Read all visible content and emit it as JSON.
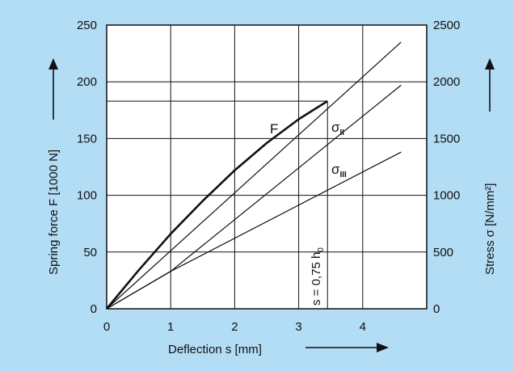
{
  "colors": {
    "background": "#b3dcf5",
    "plot_area": "#ffffff",
    "ink": "#111111"
  },
  "chart_data": {
    "type": "line",
    "xlabel": "Deflection  s  [mm]",
    "ylabel_left": "Spring force F [1000 N]",
    "ylabel_right": "Stress  σ  [N/mm²]",
    "xlim": [
      0,
      5
    ],
    "ylim_left": [
      0,
      250
    ],
    "ylim_right": [
      0,
      2500
    ],
    "xticks": [
      0,
      1,
      2,
      3,
      4
    ],
    "yticks_left": [
      0,
      50,
      100,
      150,
      200,
      250
    ],
    "yticks_right": [
      0,
      500,
      1000,
      1500,
      2000,
      2500
    ],
    "grid": true,
    "series": [
      {
        "name": "F",
        "axis": "left",
        "points": [
          [
            0,
            0
          ],
          [
            0.5,
            34
          ],
          [
            1,
            66
          ],
          [
            1.5,
            95
          ],
          [
            2,
            122
          ],
          [
            2.5,
            146
          ],
          [
            3,
            167
          ],
          [
            3.45,
            183
          ]
        ]
      },
      {
        "name": "σII",
        "axis": "right",
        "points": [
          [
            0,
            0
          ],
          [
            4.6,
            2350
          ]
        ]
      },
      {
        "name": "σIII",
        "axis": "right",
        "points": [
          [
            0,
            0
          ],
          [
            1,
            330
          ],
          [
            4.6,
            1970
          ]
        ]
      },
      {
        "name": "",
        "axis": "right",
        "points": [
          [
            0,
            0
          ],
          [
            1,
            330
          ],
          [
            4.6,
            1380
          ]
        ]
      }
    ],
    "series_labels": {
      "F": "F",
      "sigma_II": {
        "base": "σ",
        "sub": "II"
      },
      "sigma_III": {
        "base": "σ",
        "sub": "III"
      }
    },
    "annotations": {
      "vertical_line_x": 3.45,
      "horizontal_line_y": 183,
      "vertical_text": "s = 0,75 h",
      "vertical_text_sub": "0"
    }
  }
}
